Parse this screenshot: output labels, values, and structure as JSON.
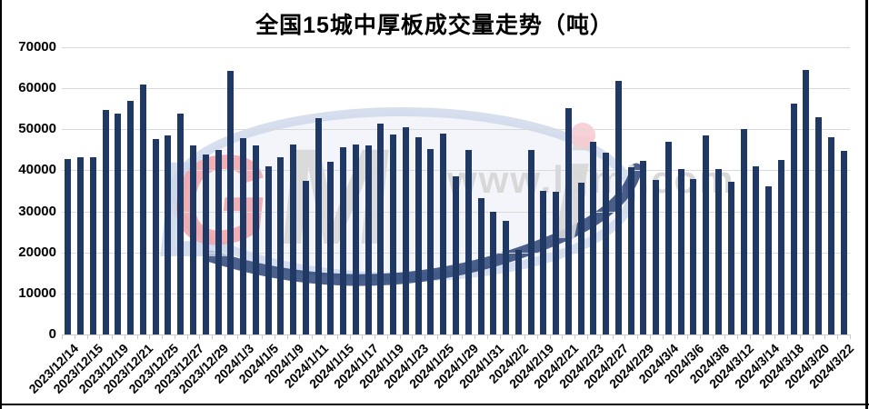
{
  "page": {
    "title": "全国15城中厚板成交量走势（吨）"
  },
  "watermark": {
    "url": "www.lgmi.com",
    "logo_letters": [
      "L",
      "G",
      "M",
      "i"
    ]
  },
  "colors": {
    "bar": "#1f3864",
    "gridline": "#d9d9d9",
    "axis_line": "#c9c9c9",
    "axis_text": "#000000",
    "frame_border": "#000000",
    "watermark_text": "#d8d8d8",
    "watermark_ellipse": "#c9d4e8",
    "watermark_red": "#efa2a8",
    "watermark_gray": "#d7d7d7",
    "watermark_navy": "#1e3a6e",
    "watermark_pink_dot": "#f6ccd0"
  },
  "chart_data": {
    "type": "bar",
    "title": "全国15城中厚板成交量走势（吨）",
    "xlabel": "",
    "ylabel": "",
    "ylim": [
      0,
      70000
    ],
    "ytick_step": 10000,
    "ytick_labels": [
      "0",
      "10000",
      "20000",
      "30000",
      "40000",
      "50000",
      "60000",
      "70000"
    ],
    "grid": true,
    "legend": false,
    "x_label_interval": 2,
    "x_tick_labels": [
      "2023/12/14",
      "2023/12/15",
      "2023/12/19",
      "2023/12/21",
      "2023/12/25",
      "2023/12/27",
      "2023/12/29",
      "2024/1/3",
      "2024/1/5",
      "2024/1/9",
      "2024/1/11",
      "2024/1/15",
      "2024/1/17",
      "2024/1/19",
      "2024/1/23",
      "2024/1/25",
      "2024/1/29",
      "2024/1/31",
      "2024/2/2",
      "2024/2/19",
      "2024/2/21",
      "2024/2/23",
      "2024/2/27",
      "2024/2/29",
      "2024/3/4",
      "2024/3/6",
      "2024/3/8",
      "2024/3/12",
      "2024/3/14",
      "2024/3/18",
      "2024/3/20",
      "2024/3/22"
    ],
    "values": [
      42800,
      43300,
      43300,
      54700,
      53800,
      56900,
      61000,
      47700,
      48500,
      53800,
      46100,
      43900,
      45000,
      64200,
      47800,
      46100,
      41000,
      43300,
      46200,
      37400,
      52700,
      42000,
      45700,
      46200,
      46100,
      51400,
      48700,
      50500,
      48100,
      45200,
      48900,
      38500,
      45000,
      33300,
      30000,
      27800,
      20500,
      45000,
      35000,
      34800,
      55200,
      36900,
      46900,
      44300,
      61700,
      40800,
      42200,
      37600,
      47000,
      40400,
      37900,
      48500,
      40300,
      37300,
      50100,
      41000,
      36000,
      42500,
      56300,
      64500,
      52900,
      48100,
      44700
    ]
  }
}
